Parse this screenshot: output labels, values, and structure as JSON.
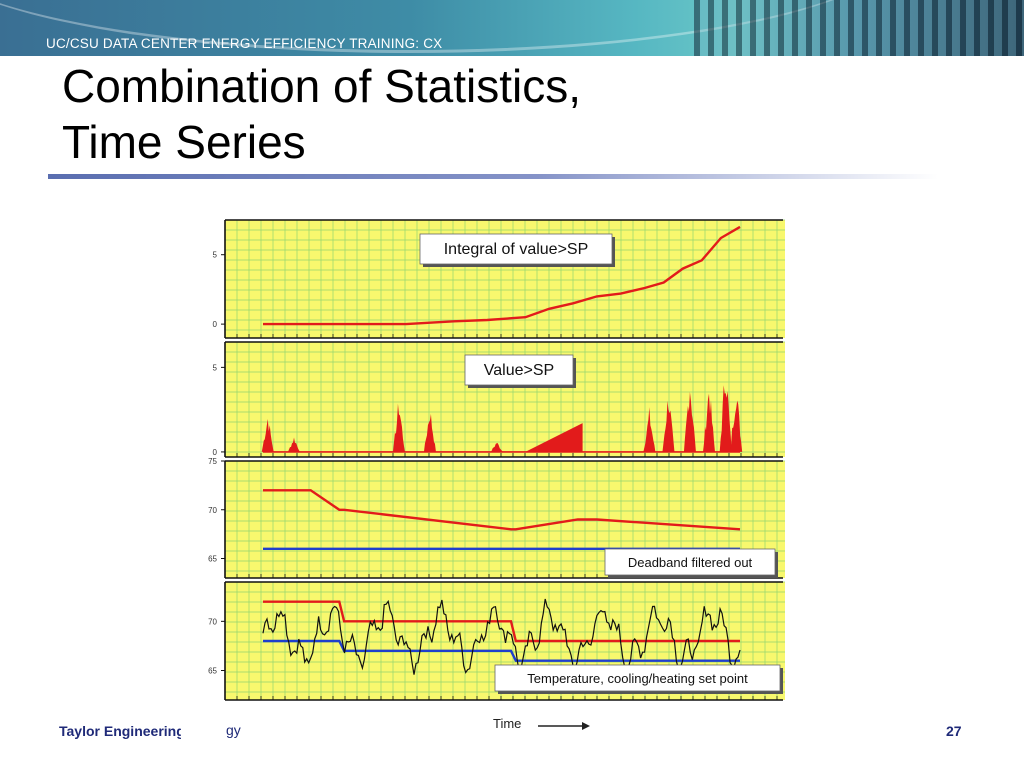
{
  "header": {
    "banner_text": "UC/CSU DATA CENTER ENERGY EFFICIENCY TRAINING: CX"
  },
  "slide": {
    "title_line1": "Combination of Statistics,",
    "title_line2": "Time Series"
  },
  "footer": {
    "company": "Taylor Engineering",
    "page_number": "27"
  },
  "colors": {
    "plot_bg": "#f8f86e",
    "grid": "#93d46f",
    "red_series": "#e21b1b",
    "blue_series": "#1f3fcc",
    "black_series": "#111111"
  },
  "chart_data": [
    {
      "type": "line",
      "annotation": "Integral of value>SP",
      "y_ticks": [
        "0",
        "5"
      ],
      "ylim": [
        -1,
        7.5
      ],
      "series": [
        {
          "color": "red",
          "x": [
            0,
            20,
            30,
            40,
            47,
            55,
            60,
            65,
            70,
            75,
            80,
            84,
            88,
            92,
            96,
            100
          ],
          "values": [
            0,
            0,
            0,
            0.2,
            0.3,
            0.5,
            1.1,
            1.5,
            2.0,
            2.2,
            2.6,
            3.0,
            4.0,
            4.6,
            6.2,
            7.0
          ]
        }
      ]
    },
    {
      "type": "area",
      "annotation": "Value>SP",
      "y_ticks": [
        "0",
        "5"
      ],
      "ylim": [
        -0.3,
        6.5
      ],
      "bursts": [
        {
          "x": 1.0,
          "h": 2.5
        },
        {
          "x": 6.5,
          "h": 1.0
        },
        {
          "x": 28.5,
          "h": 3.5
        },
        {
          "x": 35,
          "h": 3.0
        },
        {
          "x": 49,
          "h": 0.7
        },
        {
          "x": 81,
          "h": 2.7
        },
        {
          "x": 85,
          "h": 4.1
        },
        {
          "x": 89.5,
          "h": 5.1
        },
        {
          "x": 93.5,
          "h": 4.6
        },
        {
          "x": 97,
          "h": 6.2
        },
        {
          "x": 99.2,
          "h": 4.6
        }
      ],
      "ramp": {
        "x_start": 55,
        "x_end": 67,
        "h": 1.7
      }
    },
    {
      "type": "line",
      "annotation": "Deadband filtered out",
      "y_ticks": [
        "65",
        "70",
        "75"
      ],
      "ylim": [
        63,
        75
      ],
      "series": [
        {
          "color": "red",
          "x": [
            0,
            10,
            16,
            17,
            52,
            53,
            66,
            70,
            100
          ],
          "values": [
            72,
            72,
            70,
            70,
            68,
            68,
            69,
            69,
            68
          ]
        },
        {
          "color": "blue",
          "x": [
            0,
            100
          ],
          "values": [
            66,
            66
          ]
        }
      ]
    },
    {
      "type": "line",
      "annotation": "Temperature, cooling/heating set point",
      "y_ticks": [
        "65",
        "70"
      ],
      "ylim": [
        62,
        74
      ],
      "series": [
        {
          "color": "red",
          "x": [
            0,
            16,
            17,
            52,
            53,
            100
          ],
          "values": [
            72,
            72,
            70,
            70,
            68,
            68
          ]
        },
        {
          "color": "blue",
          "x": [
            0,
            16,
            17,
            52,
            53,
            100
          ],
          "values": [
            68,
            68,
            67,
            67,
            66,
            66
          ]
        },
        {
          "color": "black",
          "name": "temperature",
          "x": [
            0,
            100
          ],
          "values": [
            70,
            70
          ]
        }
      ]
    }
  ],
  "x_axis_label": "Time"
}
